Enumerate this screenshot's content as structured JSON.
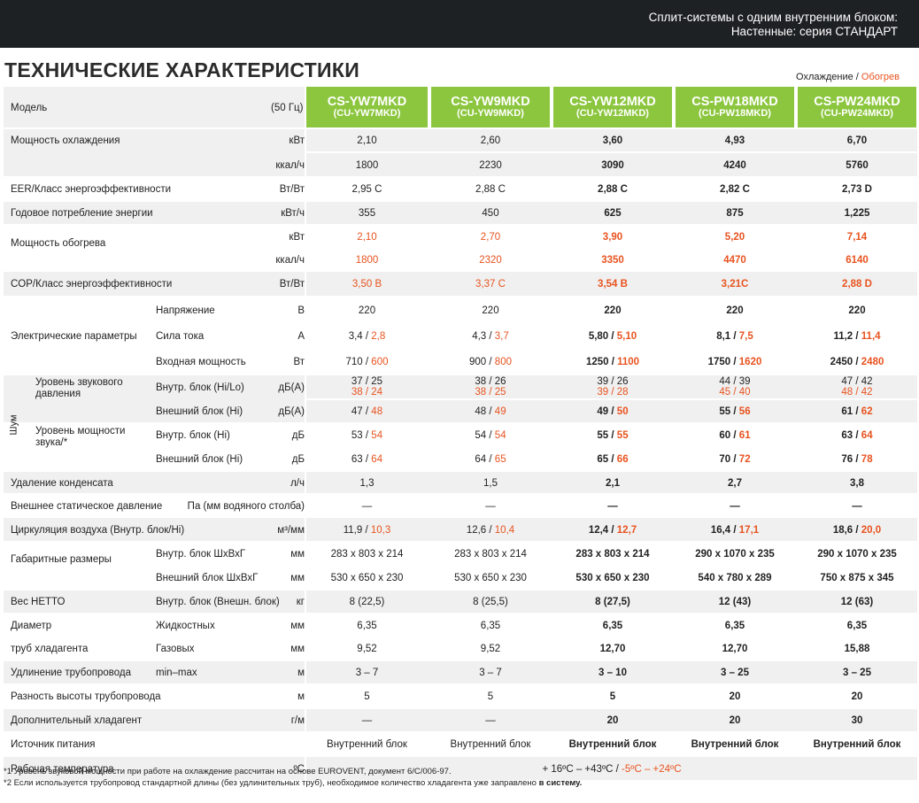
{
  "header": {
    "line1": "Сплит-системы с одним внутренним блоком:",
    "line2": "Настенные: серия СТАНДАРТ"
  },
  "title": "ТЕХНИЧЕСКИЕ ХАРАКТЕРИСТИКИ",
  "legend": {
    "cool": "Охлаждение",
    "sep": " / ",
    "heat": "Обогрев"
  },
  "colors": {
    "accent": "#8cc63f",
    "heat": "#e8531f",
    "band": "#f0f0f0",
    "topbar": "#1e2124"
  },
  "model_label": "Модель",
  "freq_label": "(50 Гц)",
  "models": [
    {
      "main": "CS-YW7MKD",
      "sub": "(CU-YW7MKD)"
    },
    {
      "main": "CS-YW9MKD",
      "sub": "(CU-YW9MKD)"
    },
    {
      "main": "CS-YW12MKD",
      "sub": "(CU-YW12MKD)"
    },
    {
      "main": "CS-PW18MKD",
      "sub": "(CU-PW18MKD)"
    },
    {
      "main": "CS-PW24MKD",
      "sub": "(CU-PW24MKD)"
    }
  ],
  "rows": [
    {
      "label": "Мощность охлаждения",
      "unit": "кВт",
      "vals": [
        [
          "2,10"
        ],
        [
          "2,60"
        ],
        [
          "3,60"
        ],
        [
          "4,93"
        ],
        [
          "6,70"
        ]
      ]
    },
    {
      "label": "",
      "unit": "ккал/ч",
      "vals": [
        [
          "1800"
        ],
        [
          "2230"
        ],
        [
          "3090"
        ],
        [
          "4240"
        ],
        [
          "5760"
        ]
      ]
    },
    {
      "label": "EER/Класс энергоэффективности",
      "unit": "Вт/Вт",
      "vals": [
        [
          "2,95 C"
        ],
        [
          "2,88 C"
        ],
        [
          "2,88 C"
        ],
        [
          "2,82 C"
        ],
        [
          "2,73 D"
        ]
      ]
    },
    {
      "label": "Годовое потребление энергии",
      "unit": "кВт/ч",
      "vals": [
        [
          "355"
        ],
        [
          "450"
        ],
        [
          "625"
        ],
        [
          "875"
        ],
        [
          "1,225"
        ]
      ]
    },
    {
      "label": "Мощность обогрева",
      "unit": "кВт",
      "vals": [
        [
          "",
          "2,10"
        ],
        [
          "",
          "2,70"
        ],
        [
          "",
          "3,90"
        ],
        [
          "",
          "5,20"
        ],
        [
          "",
          "7,14"
        ]
      ]
    },
    {
      "label": "",
      "unit": "ккал/ч",
      "vals": [
        [
          "",
          "1800"
        ],
        [
          "",
          "2320"
        ],
        [
          "",
          "3350"
        ],
        [
          "",
          "4470"
        ],
        [
          "",
          "6140"
        ]
      ]
    },
    {
      "label": "COP/Класс энергоэффективности",
      "unit": "Вт/Вт",
      "vals": [
        [
          "",
          "3,50 B"
        ],
        [
          "",
          "3,37 C"
        ],
        [
          "",
          "3,54 B"
        ],
        [
          "",
          "3,21C"
        ],
        [
          "",
          "2,88 D"
        ]
      ]
    },
    {
      "label": "Электрические параметры",
      "sub": "Напряжение",
      "unit": "В",
      "vals": [
        [
          "220"
        ],
        [
          "220"
        ],
        [
          "220"
        ],
        [
          "220"
        ],
        [
          "220"
        ]
      ]
    },
    {
      "label": "",
      "sub": "Сила тока",
      "unit": "А",
      "vals": [
        [
          "3,4 / ",
          "2,8"
        ],
        [
          "4,3 / ",
          "3,7"
        ],
        [
          "5,80 / ",
          "5,10"
        ],
        [
          "8,1 / ",
          "7,5"
        ],
        [
          "11,2 / ",
          "11,4"
        ]
      ]
    },
    {
      "label": "",
      "sub": "Входная мощность",
      "unit": "Вт",
      "vals": [
        [
          "710 / ",
          "600"
        ],
        [
          "900 / ",
          "800"
        ],
        [
          "1250 / ",
          "1100"
        ],
        [
          "1750 / ",
          "1620"
        ],
        [
          "2450 / ",
          "2480"
        ]
      ]
    },
    {
      "label": "Уровень звукового давления",
      "sub": "Внутр. блок (Hi/Lo)",
      "unit": "дБ(А)",
      "vals": [
        [
          "37 / 25",
          "38 / 24"
        ],
        [
          "38 / 26",
          "38 / 25"
        ],
        [
          "39 / 26",
          "39 / 28"
        ],
        [
          "44 / 39",
          "45 / 40"
        ],
        [
          "47 / 42",
          "48 / 42"
        ]
      ],
      "stack": true
    },
    {
      "label": "",
      "sub": "Внешний блок (Hi)",
      "unit": "дБ(А)",
      "vals": [
        [
          "47 / ",
          "48"
        ],
        [
          "48 / ",
          "49"
        ],
        [
          "49 / ",
          "50"
        ],
        [
          "55 / ",
          "56"
        ],
        [
          "61 / ",
          "62"
        ]
      ]
    },
    {
      "label": "Уровень мощности звука/*",
      "sub": "Внутр. блок (Hi)",
      "unit": "дБ",
      "vals": [
        [
          "53 / ",
          "54"
        ],
        [
          "54 / ",
          "54"
        ],
        [
          "55 / ",
          "55"
        ],
        [
          "60 / ",
          "61"
        ],
        [
          "63 / ",
          "64"
        ]
      ]
    },
    {
      "label": "",
      "sub": "Внешний блок (Hi)",
      "unit": "дБ",
      "vals": [
        [
          "63 / ",
          "64"
        ],
        [
          "64 / ",
          "65"
        ],
        [
          "65 / ",
          "66"
        ],
        [
          "70 / ",
          "72"
        ],
        [
          "76 / ",
          "78"
        ]
      ]
    },
    {
      "label": "Удаление конденсата",
      "unit": "л/ч",
      "vals": [
        [
          "1,3"
        ],
        [
          "1,5"
        ],
        [
          "2,1"
        ],
        [
          "2,7"
        ],
        [
          "3,8"
        ]
      ]
    },
    {
      "label": "Внешнее статическое давление",
      "unit": "Па (мм водяного столба)",
      "vals": [
        [
          "—"
        ],
        [
          "—"
        ],
        [
          "—"
        ],
        [
          "—"
        ],
        [
          "—"
        ]
      ]
    },
    {
      "label": "Циркуляция воздуха (Внутр. блок/Hi)",
      "unit": "м³/мм",
      "vals": [
        [
          "11,9 / ",
          "10,3"
        ],
        [
          "12,6 / ",
          "10,4"
        ],
        [
          "12,4 / ",
          "12,7"
        ],
        [
          "16,4 / ",
          "17,1"
        ],
        [
          "18,6 / ",
          "20,0"
        ]
      ]
    },
    {
      "label": "Габаритные размеры",
      "sub": "Внутр. блок   ШхВхГ",
      "unit": "мм",
      "vals": [
        [
          "283 x 803 x 214"
        ],
        [
          "283 x 803 x 214"
        ],
        [
          "283 x 803 x 214"
        ],
        [
          "290 x 1070 x 235"
        ],
        [
          "290 x 1070 x 235"
        ]
      ]
    },
    {
      "label": "",
      "sub": "Внешний блок  ШхВхГ",
      "unit": "мм",
      "vals": [
        [
          "530 x 650 x 230"
        ],
        [
          "530 x 650 x 230"
        ],
        [
          "530 x 650 x 230"
        ],
        [
          "540 x 780 x 289"
        ],
        [
          "750 x 875 x 345"
        ]
      ]
    },
    {
      "label": "Вес НЕТТО",
      "sub": "Внутр. блок (Внешн. блок)",
      "unit": "кг",
      "vals": [
        [
          "8 (22,5)"
        ],
        [
          "8 (25,5)"
        ],
        [
          "8 (27,5)"
        ],
        [
          "12 (43)"
        ],
        [
          "12 (63)"
        ]
      ]
    },
    {
      "label": "Диаметр",
      "sub": "Жидкостных",
      "unit": "мм",
      "vals": [
        [
          "6,35"
        ],
        [
          "6,35"
        ],
        [
          "6,35"
        ],
        [
          "6,35"
        ],
        [
          "6,35"
        ]
      ]
    },
    {
      "label": "труб хладагента",
      "sub": "Газовых",
      "unit": "мм",
      "vals": [
        [
          "9,52"
        ],
        [
          "9,52"
        ],
        [
          "12,70"
        ],
        [
          "12,70"
        ],
        [
          "15,88"
        ]
      ]
    },
    {
      "label": "Удлинение  трубопровода",
      "sub": "min–max",
      "unit": "м",
      "vals": [
        [
          "3 – 7"
        ],
        [
          "3 – 7"
        ],
        [
          "3 – 10"
        ],
        [
          "3 – 25"
        ],
        [
          "3 – 25"
        ]
      ]
    },
    {
      "label": "Разность высоты трубопровода",
      "unit": "м",
      "vals": [
        [
          "5"
        ],
        [
          "5"
        ],
        [
          "5"
        ],
        [
          "20"
        ],
        [
          "20"
        ]
      ]
    },
    {
      "label": "Дополнительный хладагент",
      "unit": "г/м",
      "vals": [
        [
          "—"
        ],
        [
          "—"
        ],
        [
          "20"
        ],
        [
          "20"
        ],
        [
          "30"
        ]
      ]
    },
    {
      "label": "Источник питания",
      "unit": "",
      "vals": [
        [
          "Внутренний блок"
        ],
        [
          "Внутренний блок"
        ],
        [
          "Внутренний блок"
        ],
        [
          "Внутренний блок"
        ],
        [
          "Внутренний блок"
        ]
      ]
    },
    {
      "label": "Рабочая температура",
      "unit": "ºC",
      "span_cool": "+ 16ºC – +43ºC  / ",
      "span_heat": "-5ºC – +24ºC"
    }
  ],
  "noise_label": "Шум",
  "footnotes": {
    "n1": "*1 Уровень звуковой мощности при работе на охлаждение рассчитан на основе EUROVENT, документ 6/C/006-97.",
    "n2a": "*2 Если используется трубопровод стандартной длины (без удлинительных труб), необходимое количество хладагента уже заправлено ",
    "n2b": "в систему."
  }
}
